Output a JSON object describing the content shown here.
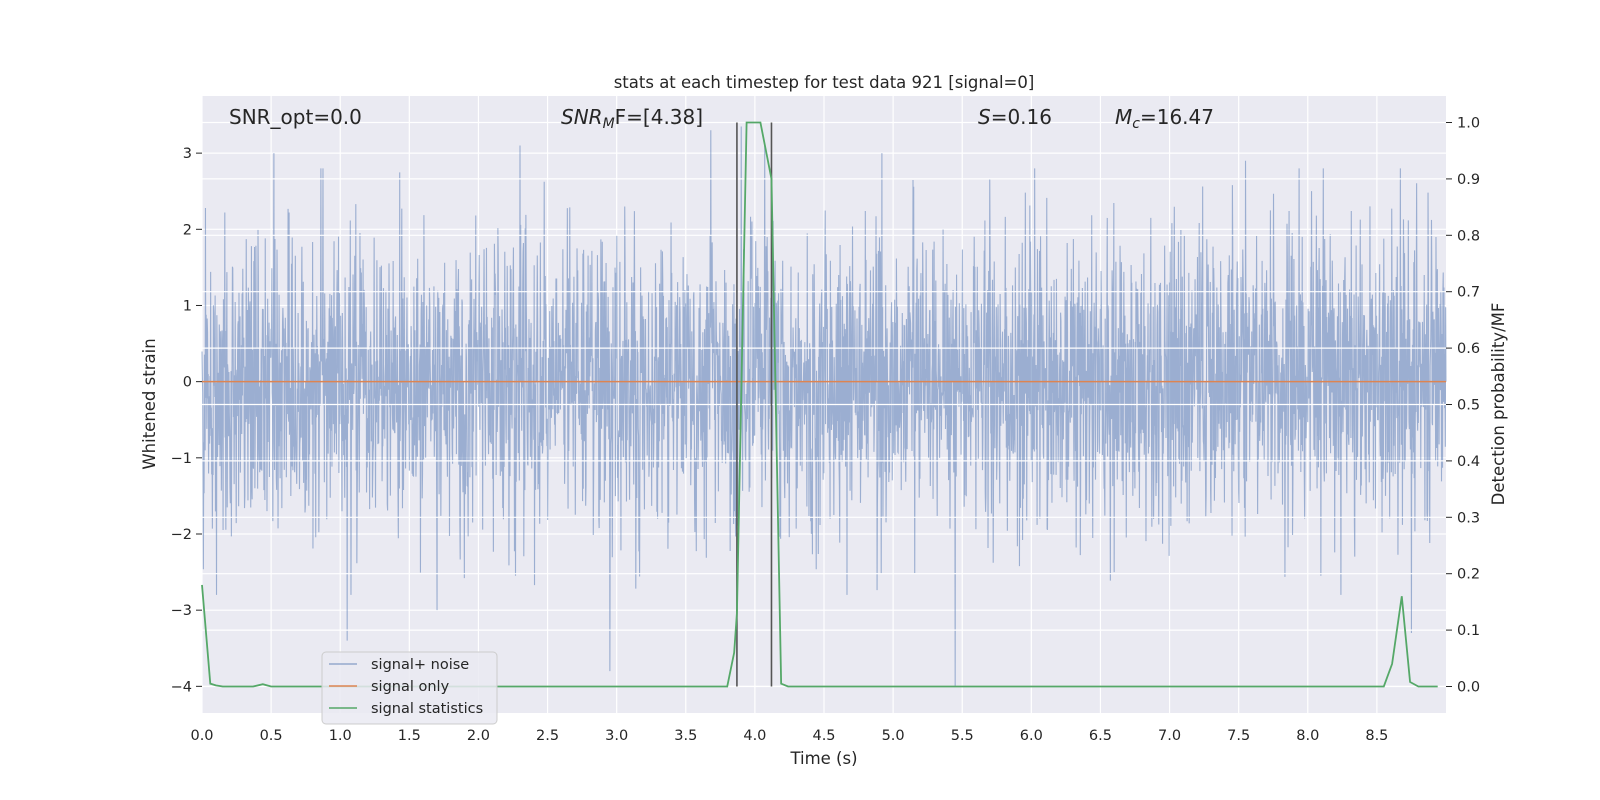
{
  "chart_data": {
    "type": "line",
    "title": "stats at each timestep for test data 921 [signal=0]",
    "xlabel": "Time (s)",
    "ylabel": "Whitened strain",
    "y2label": "Detection probability/MF",
    "xlim": [
      0.0,
      9.0
    ],
    "ylim": [
      -4.35,
      3.75
    ],
    "y2lim": [
      -0.047,
      1.047
    ],
    "x_ticks": [
      "0.0",
      "0.5",
      "1.0",
      "1.5",
      "2.0",
      "2.5",
      "3.0",
      "3.5",
      "4.0",
      "4.5",
      "5.0",
      "5.5",
      "6.0",
      "6.5",
      "7.0",
      "7.5",
      "8.0",
      "8.5"
    ],
    "y_ticks": [
      "−4",
      "−3",
      "−2",
      "−1",
      "0",
      "1",
      "2",
      "3"
    ],
    "y2_ticks": [
      "0.0",
      "0.1",
      "0.2",
      "0.3",
      "0.4",
      "0.5",
      "0.6",
      "0.7",
      "0.8",
      "0.9",
      "1.0"
    ],
    "grid": true,
    "legend_position": "lower-left",
    "annotations": {
      "snr_opt": "SNR_opt=0.0",
      "snr_mf_base": "SNR",
      "snr_mf_sub": "M",
      "snr_mf_rest": "F=[4.38]",
      "s_italic": "S",
      "s_rest": "=0.16",
      "mc_base": "M",
      "mc_sub": "c",
      "mc_rest": "=16.47"
    },
    "vlines": [
      3.87,
      4.12
    ],
    "series": [
      {
        "name": "signal+ noise",
        "color": "#4c72b0",
        "axis": "left",
        "style": "dense noise, approx. amplitude ±1.2 with peaks to ±3.0",
        "peaks": [
          [
            0.52,
            3.0
          ],
          [
            1.05,
            -3.4
          ],
          [
            1.7,
            -3.0
          ],
          [
            2.3,
            3.1
          ],
          [
            2.95,
            -3.8
          ],
          [
            3.68,
            3.3
          ],
          [
            4.07,
            3.1
          ],
          [
            4.92,
            3.0
          ],
          [
            5.45,
            -4.0
          ],
          [
            8.75,
            -3.3
          ],
          [
            3.9,
            3.35
          ],
          [
            6.6,
            -2.5
          ],
          [
            7.55,
            2.9
          ]
        ]
      },
      {
        "name": "signal only",
        "color": "#dd8452",
        "axis": "left",
        "x": [
          0.0,
          9.0
        ],
        "y": [
          0.0,
          0.0
        ]
      },
      {
        "name": "signal statistics",
        "color": "#55a868",
        "axis": "right",
        "x": [
          0.0,
          0.06,
          0.1,
          0.15,
          0.2,
          0.3,
          0.37,
          0.44,
          0.5,
          0.6,
          3.8,
          3.85,
          3.87,
          3.94,
          4.04,
          4.12,
          4.19,
          4.24,
          8.55,
          8.61,
          8.68,
          8.74,
          8.8,
          8.94
        ],
        "y": [
          0.18,
          0.005,
          0.002,
          0.0,
          0.0,
          0.0,
          0.0,
          0.004,
          0.0,
          0.0,
          0.0,
          0.06,
          0.13,
          1.0,
          1.0,
          0.9,
          0.005,
          0.0,
          0.0,
          0.04,
          0.16,
          0.008,
          0.0,
          0.0
        ]
      }
    ]
  }
}
